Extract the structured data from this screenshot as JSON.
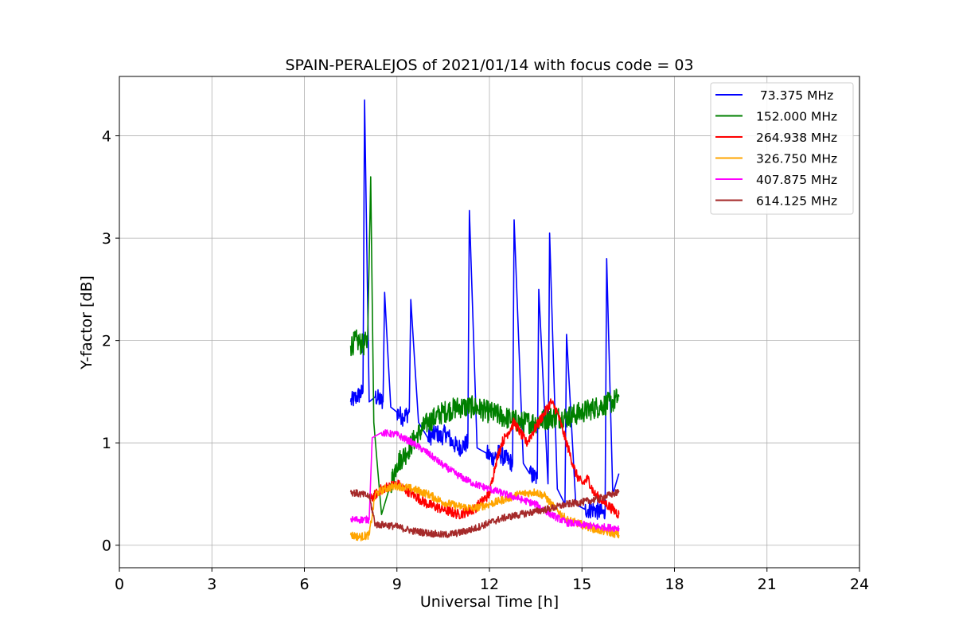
{
  "chart_data": {
    "type": "line",
    "title": "SPAIN-PERALEJOS of 2021/01/14 with focus code = 03",
    "xlabel": "Universal Time [h]",
    "ylabel": "Y-factor [dB]",
    "xlim": [
      0,
      24
    ],
    "ylim": [
      -0.22,
      4.58
    ],
    "xticks": [
      "0",
      "3",
      "6",
      "9",
      "12",
      "15",
      "18",
      "21",
      "24"
    ],
    "yticks": [
      "0",
      "1",
      "2",
      "3",
      "4"
    ],
    "grid": true,
    "legend_position": "top-right",
    "series": [
      {
        "name": " 73.375 MHz",
        "color": "#0000ff",
        "x": [
          7.5,
          7.7,
          7.9,
          7.95,
          8.1,
          8.3,
          8.55,
          8.6,
          8.8,
          9.0,
          9.2,
          9.4,
          9.45,
          9.7,
          10.0,
          10.3,
          10.4,
          10.6,
          10.8,
          11.0,
          11.3,
          11.35,
          11.6,
          11.9,
          12.1,
          12.3,
          12.5,
          12.75,
          12.8,
          13.1,
          13.3,
          13.55,
          13.6,
          13.9,
          13.95,
          14.2,
          14.45,
          14.5,
          14.8,
          15.1,
          15.4,
          15.75,
          15.8,
          16.0,
          16.2
        ],
        "y": [
          1.4,
          1.45,
          1.5,
          4.35,
          1.4,
          1.45,
          1.4,
          2.47,
          1.35,
          1.3,
          1.25,
          1.3,
          2.4,
          1.2,
          1.05,
          1.1,
          1.05,
          1.1,
          1.0,
          0.95,
          1.0,
          3.27,
          0.95,
          0.9,
          0.85,
          0.9,
          0.85,
          0.8,
          3.18,
          0.8,
          0.7,
          0.65,
          2.5,
          0.6,
          3.05,
          0.55,
          0.4,
          2.06,
          0.4,
          0.35,
          0.35,
          0.3,
          2.8,
          0.5,
          0.7
        ]
      },
      {
        "name": "152.000 MHz",
        "color": "#008000",
        "x": [
          7.5,
          7.7,
          7.9,
          8.05,
          8.15,
          8.25,
          8.5,
          8.8,
          9.0,
          9.3,
          9.6,
          10.0,
          10.5,
          11.0,
          11.5,
          12.0,
          12.5,
          13.0,
          13.5,
          14.0,
          14.5,
          15.0,
          15.5,
          16.0,
          16.2
        ],
        "y": [
          1.95,
          2.0,
          1.95,
          2.0,
          3.6,
          1.2,
          0.3,
          0.6,
          0.8,
          0.9,
          1.05,
          1.2,
          1.3,
          1.35,
          1.35,
          1.3,
          1.25,
          1.2,
          1.2,
          1.25,
          1.25,
          1.3,
          1.35,
          1.4,
          1.45
        ]
      },
      {
        "name": "264.938 MHz",
        "color": "#ff0000",
        "x": [
          8.15,
          8.5,
          9.0,
          9.5,
          10.0,
          10.5,
          11.0,
          11.5,
          12.0,
          12.2,
          12.4,
          12.6,
          12.8,
          13.0,
          13.2,
          13.5,
          13.8,
          14.0,
          14.2,
          14.4,
          14.6,
          14.8,
          15.0,
          15.2,
          15.4,
          15.6,
          15.8,
          16.0,
          16.2
        ],
        "y": [
          0.45,
          0.55,
          0.6,
          0.5,
          0.4,
          0.35,
          0.3,
          0.35,
          0.5,
          0.8,
          1.0,
          1.1,
          1.2,
          1.1,
          1.0,
          1.15,
          1.3,
          1.4,
          1.3,
          1.1,
          0.9,
          0.7,
          0.6,
          0.65,
          0.5,
          0.45,
          0.4,
          0.35,
          0.3
        ]
      },
      {
        "name": "326.750 MHz",
        "color": "#ffa500",
        "x": [
          7.5,
          7.8,
          8.1,
          8.3,
          8.6,
          9.0,
          9.5,
          10.0,
          10.5,
          11.0,
          11.5,
          12.0,
          12.5,
          13.0,
          13.5,
          13.8,
          14.0,
          14.5,
          15.0,
          15.5,
          16.0,
          16.2
        ],
        "y": [
          0.1,
          0.08,
          0.1,
          0.5,
          0.55,
          0.58,
          0.55,
          0.5,
          0.42,
          0.38,
          0.36,
          0.4,
          0.45,
          0.5,
          0.52,
          0.48,
          0.4,
          0.25,
          0.2,
          0.15,
          0.12,
          0.1
        ]
      },
      {
        "name": "407.875 MHz",
        "color": "#ff00ff",
        "x": [
          7.5,
          7.8,
          8.1,
          8.2,
          8.5,
          9.0,
          9.5,
          10.0,
          10.5,
          11.0,
          11.5,
          12.0,
          12.5,
          13.0,
          13.5,
          14.0,
          14.5,
          15.0,
          15.5,
          16.0,
          16.2
        ],
        "y": [
          0.25,
          0.25,
          0.25,
          1.05,
          1.1,
          1.08,
          1.0,
          0.9,
          0.78,
          0.68,
          0.6,
          0.55,
          0.5,
          0.45,
          0.4,
          0.3,
          0.22,
          0.2,
          0.18,
          0.17,
          0.17
        ]
      },
      {
        "name": "614.125 MHz",
        "color": "#a52a2a",
        "x": [
          7.5,
          7.8,
          8.1,
          8.3,
          8.6,
          9.0,
          9.5,
          10.0,
          10.5,
          11.0,
          11.5,
          12.0,
          12.5,
          13.0,
          13.5,
          14.0,
          14.5,
          15.0,
          15.5,
          16.0,
          16.2
        ],
        "y": [
          0.52,
          0.5,
          0.48,
          0.2,
          0.2,
          0.18,
          0.14,
          0.12,
          0.1,
          0.12,
          0.16,
          0.22,
          0.27,
          0.3,
          0.33,
          0.36,
          0.4,
          0.42,
          0.45,
          0.5,
          0.52
        ]
      }
    ]
  }
}
